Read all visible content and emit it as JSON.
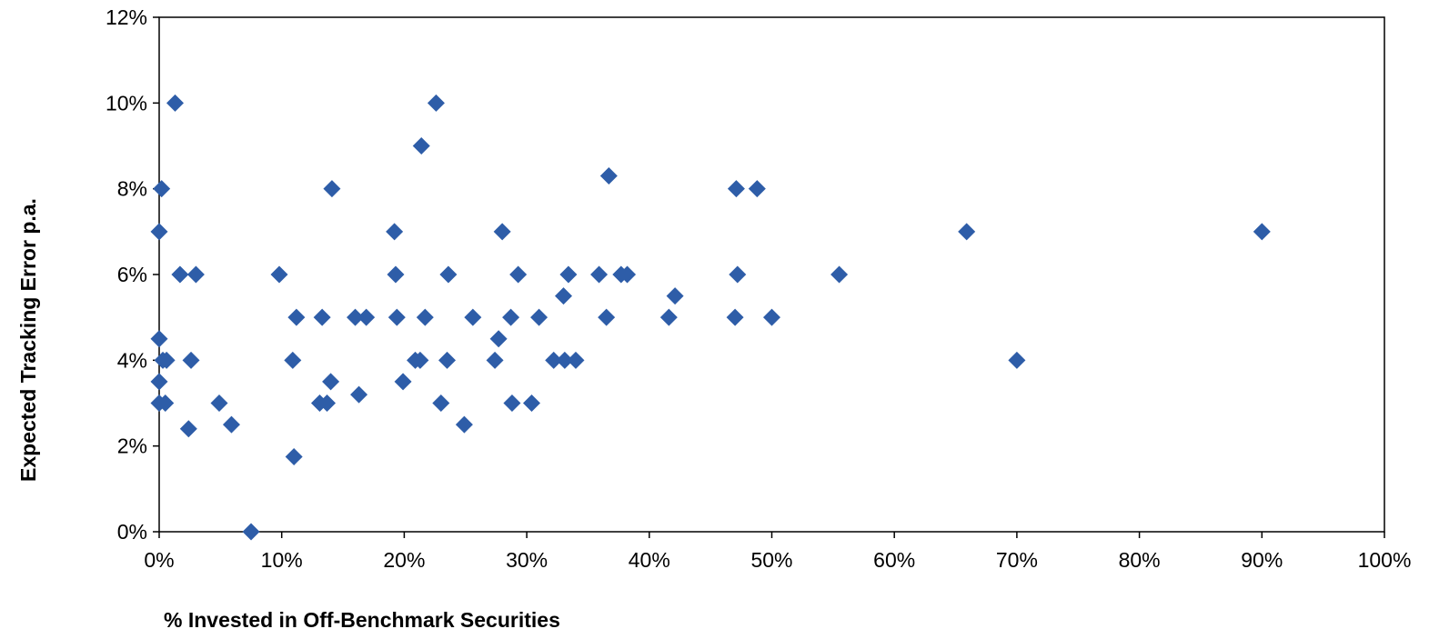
{
  "chart_data": {
    "type": "scatter",
    "title": "",
    "xlabel": "% Invested in Off-Benchmark Securities",
    "ylabel": "Expected Tracking Error p.a.",
    "xlim": [
      0,
      100
    ],
    "ylim": [
      0,
      12
    ],
    "x_ticks": [
      0,
      10,
      20,
      30,
      40,
      50,
      60,
      70,
      80,
      90,
      100
    ],
    "y_ticks": [
      0,
      2,
      4,
      6,
      8,
      10,
      12
    ],
    "x_tick_labels": [
      "0%",
      "10%",
      "20%",
      "30%",
      "40%",
      "50%",
      "60%",
      "70%",
      "80%",
      "90%",
      "100%"
    ],
    "y_tick_labels": [
      "0%",
      "2%",
      "4%",
      "6%",
      "8%",
      "10%",
      "12%"
    ],
    "grid": false,
    "legend": "none",
    "marker": "diamond",
    "marker_color": "#2E5DA8",
    "series": [
      {
        "points": [
          [
            0.0,
            3.0
          ],
          [
            0.0,
            3.5
          ],
          [
            0.0,
            4.5
          ],
          [
            0.0,
            7.0
          ],
          [
            0.2,
            8.0
          ],
          [
            0.3,
            4.0
          ],
          [
            0.5,
            3.0
          ],
          [
            0.6,
            4.0
          ],
          [
            1.3,
            10.0
          ],
          [
            1.7,
            6.0
          ],
          [
            2.4,
            2.4
          ],
          [
            2.6,
            4.0
          ],
          [
            3.0,
            6.0
          ],
          [
            4.9,
            3.0
          ],
          [
            5.9,
            2.5
          ],
          [
            7.5,
            0.0
          ],
          [
            9.8,
            6.0
          ],
          [
            10.9,
            4.0
          ],
          [
            11.0,
            1.75
          ],
          [
            11.2,
            5.0
          ],
          [
            13.1,
            3.0
          ],
          [
            13.3,
            5.0
          ],
          [
            13.7,
            3.0
          ],
          [
            14.0,
            3.5
          ],
          [
            14.1,
            8.0
          ],
          [
            16.0,
            5.0
          ],
          [
            16.3,
            3.2
          ],
          [
            16.9,
            5.0
          ],
          [
            19.2,
            7.0
          ],
          [
            19.3,
            6.0
          ],
          [
            19.4,
            5.0
          ],
          [
            19.9,
            3.5
          ],
          [
            20.9,
            4.0
          ],
          [
            21.3,
            4.0
          ],
          [
            21.4,
            9.0
          ],
          [
            21.7,
            5.0
          ],
          [
            22.6,
            10.0
          ],
          [
            23.0,
            3.0
          ],
          [
            23.5,
            4.0
          ],
          [
            23.6,
            6.0
          ],
          [
            24.9,
            2.5
          ],
          [
            25.6,
            5.0
          ],
          [
            27.4,
            4.0
          ],
          [
            27.7,
            4.5
          ],
          [
            28.0,
            7.0
          ],
          [
            28.7,
            5.0
          ],
          [
            28.8,
            3.0
          ],
          [
            29.3,
            6.0
          ],
          [
            30.4,
            3.0
          ],
          [
            31.0,
            5.0
          ],
          [
            32.2,
            4.0
          ],
          [
            33.0,
            5.5
          ],
          [
            33.1,
            4.0
          ],
          [
            33.4,
            6.0
          ],
          [
            34.0,
            4.0
          ],
          [
            35.9,
            6.0
          ],
          [
            36.5,
            5.0
          ],
          [
            36.7,
            8.3
          ],
          [
            37.7,
            6.0
          ],
          [
            38.2,
            6.0
          ],
          [
            41.6,
            5.0
          ],
          [
            42.1,
            5.5
          ],
          [
            47.0,
            5.0
          ],
          [
            47.1,
            8.0
          ],
          [
            47.2,
            6.0
          ],
          [
            48.8,
            8.0
          ],
          [
            50.0,
            5.0
          ],
          [
            55.5,
            6.0
          ],
          [
            65.9,
            7.0
          ],
          [
            70.0,
            4.0
          ],
          [
            90.0,
            7.0
          ]
        ]
      }
    ]
  }
}
